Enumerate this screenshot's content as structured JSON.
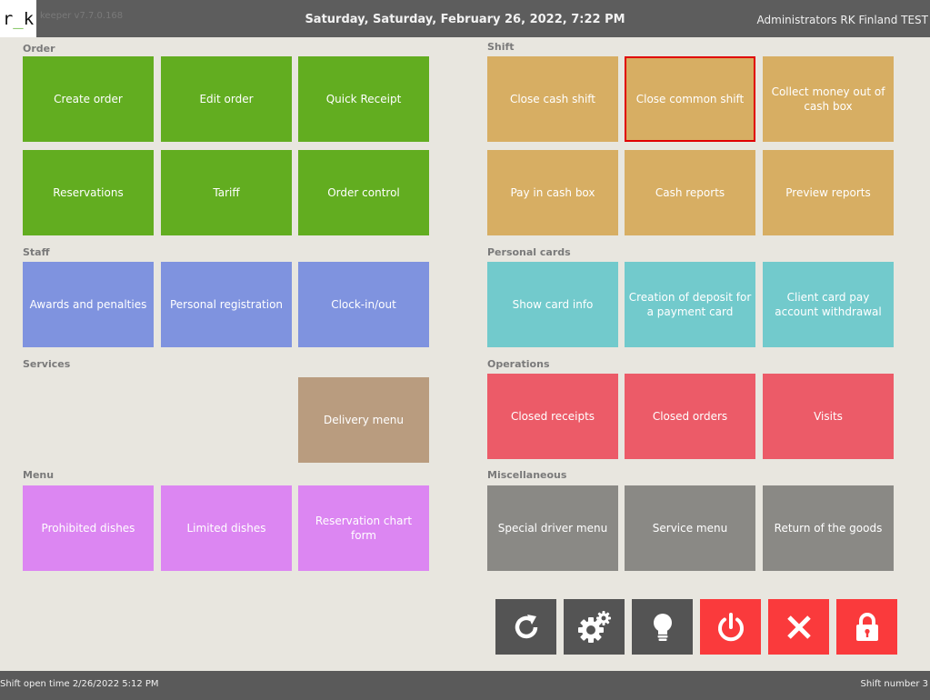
{
  "header": {
    "logo": "r_k",
    "version": "keeper v7.7.0.168",
    "datetime": "Saturday, Saturday, February 26, 2022, 7:22 PM",
    "user": "Administrators RK Finland TEST"
  },
  "sections": {
    "order": "Order",
    "staff": "Staff",
    "services": "Services",
    "menu": "Menu",
    "shift": "Shift",
    "personal_cards": "Personal cards",
    "operations": "Operations",
    "miscellaneous": "Miscellaneous"
  },
  "tiles": {
    "create_order": "Create order",
    "edit_order": "Edit order",
    "quick_receipt": "Quick Receipt",
    "reservations": "Reservations",
    "tariff": "Tariff",
    "order_control": "Order control",
    "awards_penalties": "Awards and penalties",
    "personal_registration": "Personal registration",
    "clock_in_out": "Clock-in/out",
    "delivery_menu": "Delivery menu",
    "prohibited_dishes": "Prohibited dishes",
    "limited_dishes": "Limited dishes",
    "reservation_chart_form": "Reservation chart form",
    "close_cash_shift": "Close cash shift",
    "close_common_shift": "Close common shift",
    "collect_money": "Collect money out of cash box",
    "pay_in_cash_box": "Pay in cash box",
    "cash_reports": "Cash reports",
    "preview_reports": "Preview reports",
    "show_card_info": "Show card info",
    "creation_of_deposit": "Creation of deposit for a payment card",
    "client_card_withdrawal": "Client card pay account withdrawal",
    "closed_receipts": "Closed receipts",
    "closed_orders": "Closed orders",
    "visits": "Visits",
    "special_driver_menu": "Special driver menu",
    "service_menu": "Service menu",
    "return_of_goods": "Return of the goods"
  },
  "actions": {
    "refresh_icon": "refresh-icon",
    "settings_icon": "gears-icon",
    "hint_icon": "lightbulb-icon",
    "power_icon": "power-icon",
    "close_icon": "close-icon",
    "lock_icon": "lock-icon"
  },
  "footer": {
    "shift_open_time": "Shift open time 2/26/2022 5:12 PM",
    "shift_number": "Shift number 3"
  },
  "colors": {
    "order": "#62ad20",
    "staff": "#7f93df",
    "services": "#b99c7f",
    "menu": "#dc86f2",
    "shift": "#d7ae63",
    "personal_cards": "#72cacc",
    "operations": "#ec5b68",
    "miscellaneous": "#8a8985",
    "selection_border": "#e00000"
  }
}
